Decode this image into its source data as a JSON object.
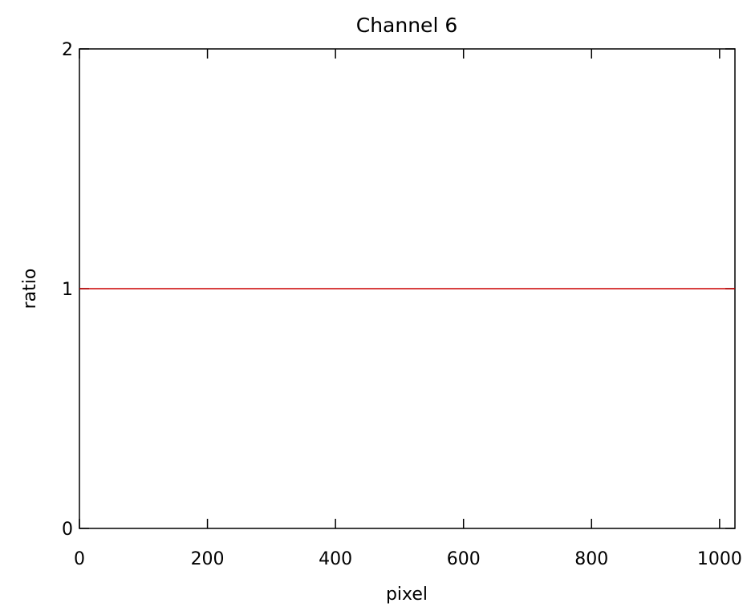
{
  "chart_data": {
    "type": "line",
    "title": "Channel 6",
    "xlabel": "pixel",
    "ylabel": "ratio",
    "xlim": [
      0,
      1024
    ],
    "ylim": [
      0,
      2
    ],
    "x_ticks": [
      0,
      200,
      400,
      600,
      800,
      1000
    ],
    "x_tick_labels": [
      "0",
      "200",
      "400",
      "600",
      "800",
      "1000"
    ],
    "y_ticks": [
      0,
      1,
      2
    ],
    "y_tick_labels": [
      "0",
      "1",
      "2"
    ],
    "grid": false,
    "legend": "none",
    "series": [
      {
        "color": "#cc0000",
        "x": [
          0,
          1024
        ],
        "y": [
          1,
          1
        ]
      }
    ]
  }
}
